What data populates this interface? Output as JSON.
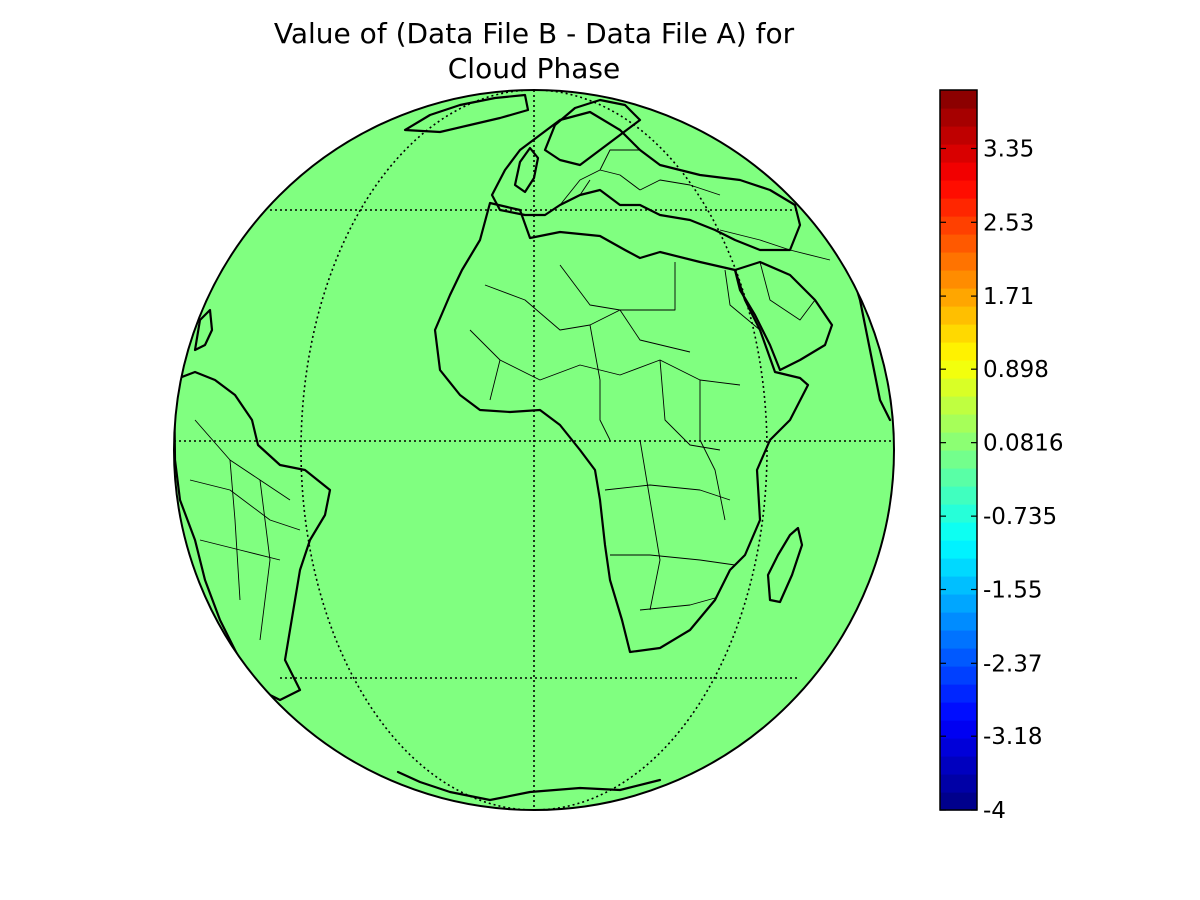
{
  "chart_data": {
    "type": "map",
    "projection": "orthographic",
    "title_lines": [
      "Value of (Data File B - Data File A) for",
      "Cloud Phase"
    ],
    "field_color": "#80ff80",
    "field_value": 0.0816,
    "colormap": "jet",
    "colorbar": {
      "min": -4,
      "max": 4,
      "ticks": [
        {
          "value": 3.35,
          "label": "3.35"
        },
        {
          "value": 2.53,
          "label": "2.53"
        },
        {
          "value": 1.71,
          "label": "1.71"
        },
        {
          "value": 0.898,
          "label": "0.898"
        },
        {
          "value": 0.0816,
          "label": "0.0816"
        },
        {
          "value": -0.735,
          "label": "-0.735"
        },
        {
          "value": -1.55,
          "label": "-1.55"
        },
        {
          "value": -2.37,
          "label": "-2.37"
        },
        {
          "value": -3.18,
          "label": "-3.18"
        },
        {
          "value": -4,
          "label": "-4"
        }
      ],
      "placement": "right"
    },
    "graticule": "dotted"
  }
}
